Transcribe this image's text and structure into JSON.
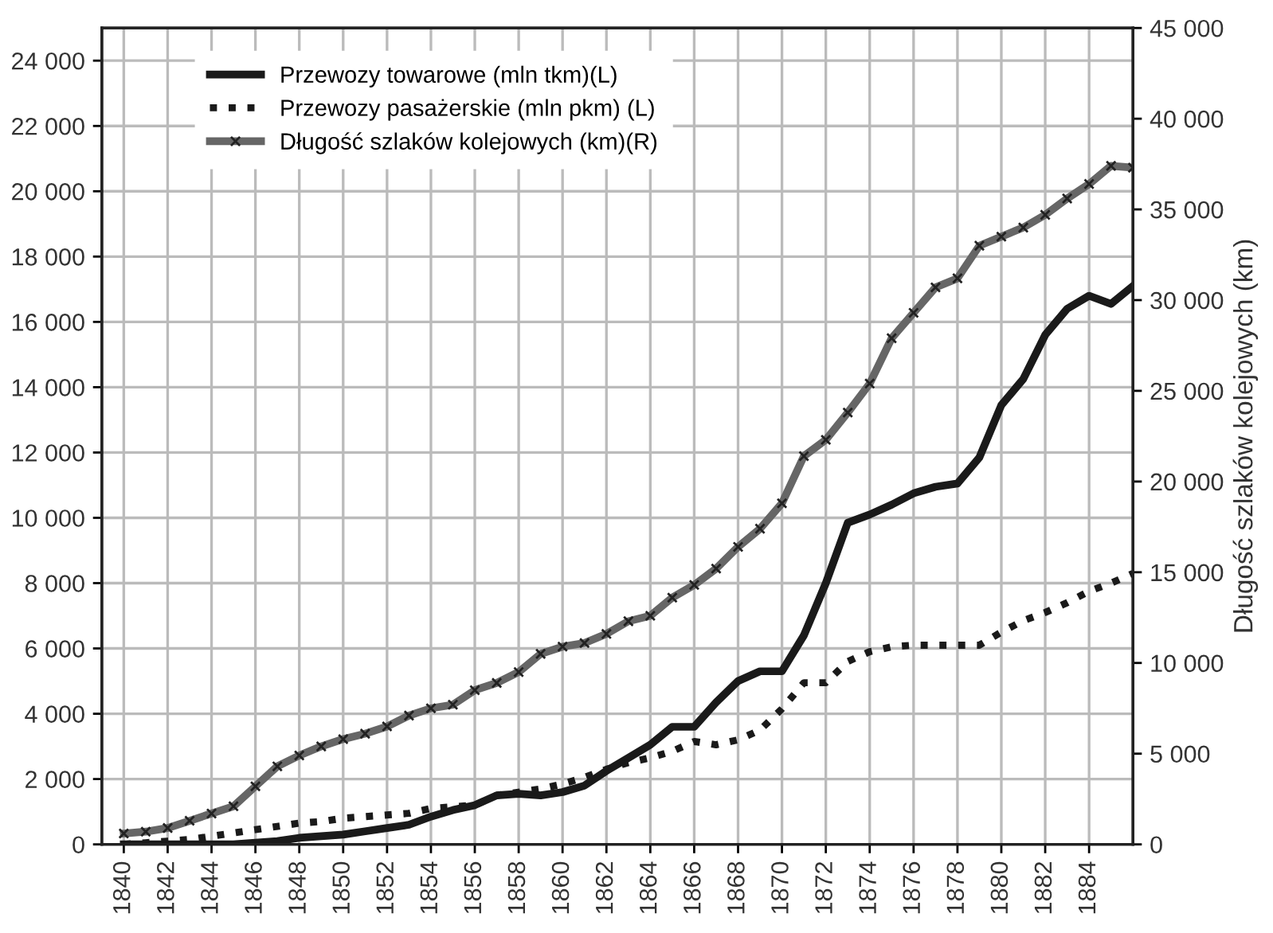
{
  "chart_data": {
    "type": "line",
    "ylabel": null,
    "y2label": "Długość szlaków kolejowych (km)",
    "x": [
      1840,
      1841,
      1842,
      1843,
      1844,
      1845,
      1846,
      1847,
      1848,
      1849,
      1850,
      1851,
      1852,
      1853,
      1854,
      1855,
      1856,
      1857,
      1858,
      1859,
      1860,
      1861,
      1862,
      1863,
      1864,
      1865,
      1866,
      1867,
      1868,
      1869,
      1870,
      1871,
      1872,
      1873,
      1874,
      1875,
      1876,
      1877,
      1878,
      1879,
      1880,
      1881,
      1882,
      1883,
      1884,
      1885,
      1886
    ],
    "series": [
      {
        "name": "Przewozy towarowe (mln tkm)(L)",
        "color": "#1a1a1a",
        "line_style": "solid",
        "marker": "none",
        "axis": "y",
        "values": [
          0,
          0,
          0,
          0,
          0,
          0,
          50,
          100,
          200,
          250,
          300,
          400,
          500,
          600,
          850,
          1050,
          1200,
          1500,
          1550,
          1500,
          1600,
          1800,
          2250,
          2650,
          3050,
          3600,
          3600,
          4350,
          5000,
          5300,
          5300,
          6400,
          8000,
          9850,
          10100,
          10400,
          10750,
          10950,
          11050,
          11850,
          13450,
          14250,
          15600,
          16400,
          16800,
          16550,
          17100
        ]
      },
      {
        "name": "Przewozy pasażerskie (mln pkm) (L)",
        "color": "#1a1a1a",
        "line_style": "dotted",
        "marker": "none",
        "axis": "y",
        "values": [
          0,
          50,
          100,
          150,
          250,
          350,
          450,
          550,
          650,
          700,
          800,
          850,
          900,
          950,
          1100,
          1150,
          1200,
          1500,
          1600,
          1700,
          1850,
          2050,
          2300,
          2500,
          2650,
          2850,
          3150,
          3050,
          3200,
          3500,
          4150,
          4950,
          4950,
          5600,
          5900,
          6050,
          6100,
          6100,
          6100,
          6100,
          6500,
          6850,
          7100,
          7400,
          7750,
          8000,
          8300
        ]
      },
      {
        "name": "Długość szlaków kolejowych (km)(R)",
        "color": "#666666",
        "line_style": "solid",
        "marker": "cross",
        "axis": "y2",
        "values": [
          600,
          700,
          900,
          1300,
          1700,
          2100,
          3200,
          4300,
          4900,
          5400,
          5800,
          6100,
          6500,
          7100,
          7500,
          7700,
          8500,
          8900,
          9500,
          10500,
          10900,
          11100,
          11600,
          12300,
          12600,
          13600,
          14300,
          15200,
          16400,
          17400,
          18800,
          21400,
          22300,
          23800,
          25400,
          27900,
          29300,
          30700,
          31200,
          33000,
          33500,
          34000,
          34700,
          35600,
          36400,
          37400,
          37300
        ]
      }
    ],
    "xlim": [
      1839,
      1886
    ],
    "xticks": [
      1840,
      1842,
      1844,
      1846,
      1848,
      1850,
      1852,
      1854,
      1856,
      1858,
      1860,
      1862,
      1864,
      1866,
      1868,
      1870,
      1872,
      1874,
      1876,
      1878,
      1880,
      1882,
      1884
    ],
    "ylim": [
      0,
      25000
    ],
    "yticks": [
      0,
      {
        "value": 2000,
        "label": "2 000"
      },
      {
        "value": 4000,
        "label": "4 000"
      },
      {
        "value": 6000,
        "label": "6 000"
      },
      {
        "value": 8000,
        "label": "8 000"
      },
      {
        "value": 10000,
        "label": "10 000"
      },
      {
        "value": 12000,
        "label": "12 000"
      },
      {
        "value": 14000,
        "label": "14 000"
      },
      {
        "value": 16000,
        "label": "16 000"
      },
      {
        "value": 18000,
        "label": "18 000"
      },
      {
        "value": 20000,
        "label": "20 000"
      },
      {
        "value": 22000,
        "label": "22 000"
      },
      {
        "value": 24000,
        "label": "24 000"
      }
    ],
    "y2lim": [
      0,
      45000
    ],
    "y2ticks": [
      0,
      {
        "value": 5000,
        "label": "5 000"
      },
      {
        "value": 10000,
        "label": "10 000"
      },
      {
        "value": 15000,
        "label": "15 000"
      },
      {
        "value": 20000,
        "label": "20 000"
      },
      {
        "value": 25000,
        "label": "25 000"
      },
      {
        "value": 30000,
        "label": "30 000"
      },
      {
        "value": 35000,
        "label": "35 000"
      },
      {
        "value": 40000,
        "label": "40 000"
      },
      {
        "value": 45000,
        "label": "45 000"
      }
    ],
    "grid": true,
    "legend": "top left"
  }
}
